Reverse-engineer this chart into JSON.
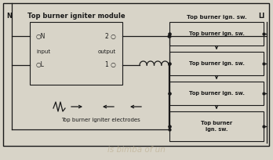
{
  "bg_color": "#d8d4c8",
  "line_color": "#1a1a1a",
  "title": "Top burner igniter module",
  "N_label": "N",
  "LI_label": "LI",
  "input_label": "input",
  "output_label": "output",
  "electrodes_label": "Top burner igniter electrodes",
  "sw_labels": [
    "Top burner ign. sw.",
    "Top burner ign. sw.",
    "Top burner ign. sw.",
    "Top burner\nign. sw."
  ],
  "sw_above_label": "Top burner ign. sw.",
  "watermark": "is bimba of un"
}
